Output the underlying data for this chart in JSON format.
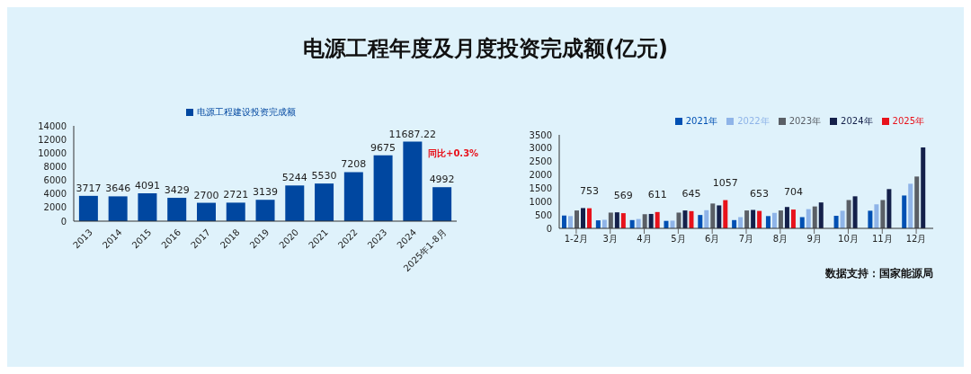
{
  "chart_data": [
    {
      "type": "bar",
      "title": "电源工程年度及月度投资完成额(亿元)",
      "categories": [
        "2013",
        "2014",
        "2015",
        "2016",
        "2017",
        "2018",
        "2019",
        "2020",
        "2021",
        "2022",
        "2023",
        "2024",
        "2025年1-8月"
      ],
      "series": [
        {
          "name": "电源工程建设投资完成额",
          "color": "#0047a0",
          "values": [
            3717,
            3646,
            4091,
            3429,
            2700,
            2721,
            3139,
            5244,
            5530,
            7208,
            9675,
            11687.22,
            4992
          ]
        }
      ],
      "ylim": [
        0,
        14000
      ],
      "yticks": [
        0,
        2000,
        4000,
        6000,
        8000,
        10000,
        12000,
        14000
      ],
      "grid": false,
      "legend": "top",
      "data_labels": true,
      "annotations": [
        "同比+0.3%"
      ]
    },
    {
      "type": "bar",
      "categories": [
        "1-2月",
        "3月",
        "4月",
        "5月",
        "6月",
        "7月",
        "8月",
        "9月",
        "10月",
        "11月",
        "12月"
      ],
      "series": [
        {
          "name": "2021年",
          "color": "#0050b3",
          "values": [
            480,
            300,
            310,
            280,
            500,
            310,
            460,
            420,
            470,
            660,
            1230
          ]
        },
        {
          "name": "2022年",
          "color": "#8fb4e8",
          "values": [
            460,
            320,
            350,
            290,
            680,
            420,
            580,
            720,
            660,
            900,
            1670
          ]
        },
        {
          "name": "2023年",
          "color": "#5a5f66",
          "values": [
            670,
            590,
            530,
            590,
            930,
            670,
            670,
            820,
            1060,
            1060,
            1940
          ]
        },
        {
          "name": "2024年",
          "color": "#14204a",
          "values": [
            760,
            600,
            540,
            670,
            860,
            690,
            800,
            970,
            1200,
            1470,
            3030
          ]
        },
        {
          "name": "2025年",
          "color": "#e8121b",
          "values": [
            753,
            569,
            611,
            645,
            1057,
            653,
            704,
            null,
            null,
            null,
            null
          ],
          "value_labels": [
            "753",
            "569",
            "611",
            "645",
            "1057",
            "653",
            "704",
            null,
            null,
            null,
            null
          ]
        }
      ],
      "ylim": [
        0,
        3500
      ],
      "yticks": [
        0,
        500,
        1000,
        1500,
        2000,
        2500,
        3000,
        3500
      ],
      "grid": false,
      "legend": "top right",
      "annotations": [
        "数据支持：国家能源局"
      ]
    }
  ]
}
